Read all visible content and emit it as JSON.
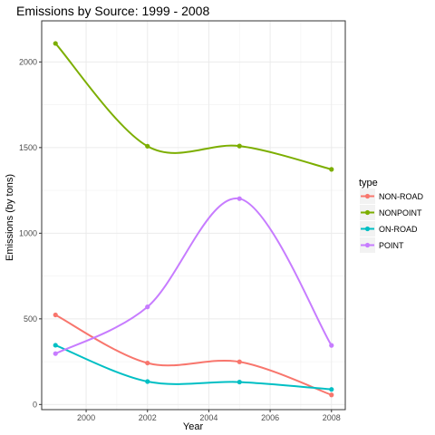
{
  "chart_data": {
    "type": "line",
    "title": "Emissions by Source: 1999 - 2008",
    "xlabel": "Year",
    "ylabel": "Emissions (by tons)",
    "x": [
      1999,
      2002,
      2005,
      2008
    ],
    "xlim": [
      1998.55,
      2008.45
    ],
    "ylim": [
      -30,
      2240
    ],
    "x_ticks": [
      2000,
      2002,
      2004,
      2006,
      2008
    ],
    "y_ticks": [
      0,
      500,
      1000,
      1500,
      2000
    ],
    "grid": true,
    "legend_title": "type",
    "legend_position": "right",
    "series": [
      {
        "name": "NON-ROAD",
        "values": [
          523,
          242,
          249,
          56
        ],
        "color": "#F8766D"
      },
      {
        "name": "NONPOINT",
        "values": [
          2108,
          1508,
          1509,
          1373
        ],
        "color": "#7CAE00"
      },
      {
        "name": "ON-ROAD",
        "values": [
          346,
          134,
          131,
          88
        ],
        "color": "#00BFC4"
      },
      {
        "name": "POINT",
        "values": [
          297,
          570,
          1202,
          345
        ],
        "color": "#C77CFF"
      }
    ]
  }
}
